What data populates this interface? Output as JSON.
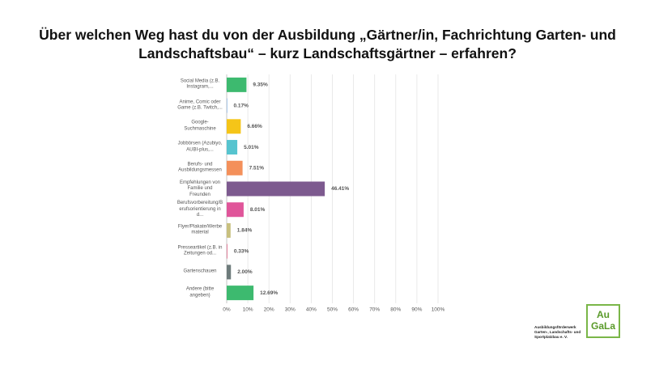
{
  "chart_data": {
    "type": "barh",
    "title": "Über welchen Weg hast du von der Ausbildung „Gärtner/in, Fachrichtung Garten- und Landschaftsbau“ – kurz Landschaftsgärtner – erfahren?",
    "categories": [
      "Social Media (z.B. Instagram,...",
      "Anime, Comic oder Game (z.B. Twitch,...",
      "Google-Suchmaschine",
      "Jobbörsen (Azubiyo, AUBI-plus,...",
      "Berufs- und Ausbildungsmessen",
      "Empfehlungen von Familie und Freunden",
      "Berufsvorbereitung/Berufsorientierung in d...",
      "Flyer/Plakate/Werbematerial",
      "Presseartikel (z.B. in Zeitungen od...",
      "Gartenschauen",
      "Andere (bitte angeben)"
    ],
    "values": [
      9.35,
      0.17,
      6.66,
      5.01,
      7.51,
      46.41,
      8.01,
      1.84,
      0.33,
      2.0,
      12.69
    ],
    "value_labels": [
      "9.35%",
      "0.17%",
      "6.66%",
      "5.01%",
      "7.51%",
      "46.41%",
      "8.01%",
      "1.84%",
      "0.33%",
      "2.00%",
      "12.69%"
    ],
    "colors": [
      "#3dba6f",
      "#4a90d9",
      "#f5c518",
      "#56c4cf",
      "#f4905a",
      "#7d5a8f",
      "#e0559a",
      "#c8c07e",
      "#e07090",
      "#6e7b7b",
      "#3dba6f"
    ],
    "xlim": [
      0,
      100
    ],
    "xticks": [
      {
        "value": 0,
        "label": "0%"
      },
      {
        "value": 10,
        "label": "10%"
      },
      {
        "value": 20,
        "label": "20%"
      },
      {
        "value": 30,
        "label": "30%"
      },
      {
        "value": 40,
        "label": "40%"
      },
      {
        "value": 50,
        "label": "50%"
      },
      {
        "value": 60,
        "label": "60%"
      },
      {
        "value": 70,
        "label": "70%"
      },
      {
        "value": 80,
        "label": "80%"
      },
      {
        "value": 90,
        "label": "90%"
      },
      {
        "value": 100,
        "label": "100%"
      }
    ],
    "grid": true
  },
  "logo": {
    "mark_top": "Au",
    "mark_bottom": "GaLa",
    "org": "Ausbildungsförderwerk Garten-, Landschafts- und Sportplatzbau e. V."
  }
}
